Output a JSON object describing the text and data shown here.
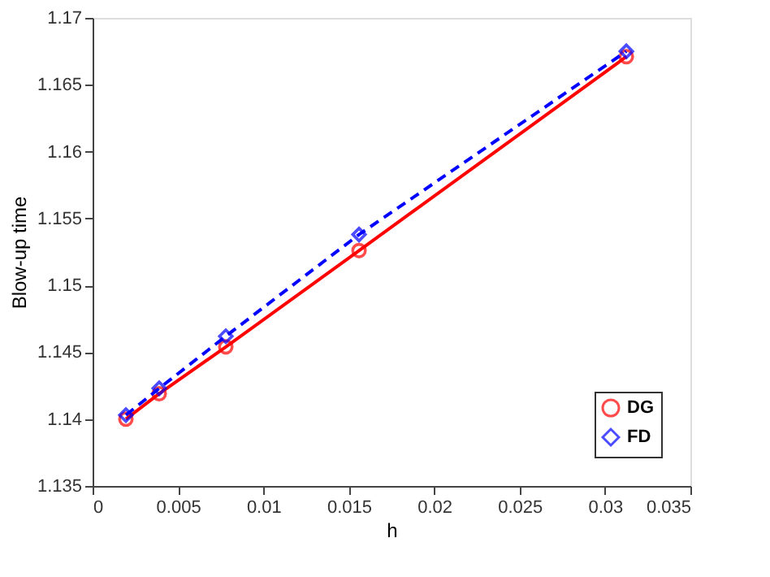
{
  "chart_data": {
    "type": "line",
    "xlabel": "h",
    "ylabel": "Blow-up time",
    "x": [
      0.00195,
      0.0039,
      0.0078,
      0.0156,
      0.03125
    ],
    "series": [
      {
        "name": "DG",
        "color": "#ff0000",
        "values": [
          1.14,
          1.1419,
          1.1454,
          1.1526,
          1.1671
        ],
        "marker": "circle",
        "line_style": "solid"
      },
      {
        "name": "FD",
        "color": "#0000ff",
        "values": [
          1.1403,
          1.1423,
          1.1462,
          1.1538,
          1.1675
        ],
        "marker": "diamond",
        "line_style": "dashed"
      }
    ],
    "xlim": [
      0,
      0.035
    ],
    "xticks": [
      0,
      0.005,
      0.01,
      0.015,
      0.02,
      0.025,
      0.03,
      0.035
    ],
    "ylim": [
      1.135,
      1.17
    ],
    "yticks": [
      1.135,
      1.14,
      1.145,
      1.15,
      1.155,
      1.16,
      1.165,
      1.17
    ],
    "grid": false,
    "legend": "bottom right"
  }
}
